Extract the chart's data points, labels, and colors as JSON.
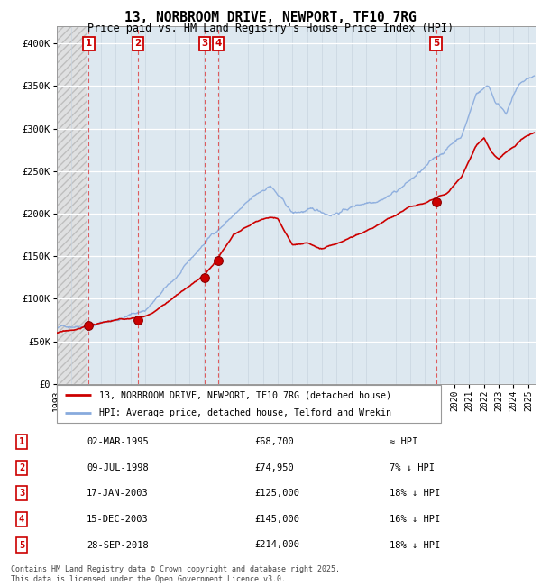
{
  "title1": "13, NORBROOM DRIVE, NEWPORT, TF10 7RG",
  "title2": "Price paid vs. HM Land Registry's House Price Index (HPI)",
  "yticks": [
    0,
    50000,
    100000,
    150000,
    200000,
    250000,
    300000,
    350000,
    400000
  ],
  "ytick_labels": [
    "£0",
    "£50K",
    "£100K",
    "£150K",
    "£200K",
    "£250K",
    "£300K",
    "£350K",
    "£400K"
  ],
  "xlim_start": 1993.0,
  "xlim_end": 2025.5,
  "ylim_min": 0,
  "ylim_max": 420000,
  "hatch_end": 1995.0,
  "sales": [
    {
      "num": 1,
      "year": 1995.17,
      "price": 68700
    },
    {
      "num": 2,
      "year": 1998.52,
      "price": 74950
    },
    {
      "num": 3,
      "year": 2003.05,
      "price": 125000
    },
    {
      "num": 4,
      "year": 2003.96,
      "price": 145000
    },
    {
      "num": 5,
      "year": 2018.74,
      "price": 214000
    }
  ],
  "legend_line1": "13, NORBROOM DRIVE, NEWPORT, TF10 7RG (detached house)",
  "legend_line2": "HPI: Average price, detached house, Telford and Wrekin",
  "table": [
    {
      "num": 1,
      "date": "02-MAR-1995",
      "price": "£68,700",
      "hpi": "≈ HPI"
    },
    {
      "num": 2,
      "date": "09-JUL-1998",
      "price": "£74,950",
      "hpi": "7% ↓ HPI"
    },
    {
      "num": 3,
      "date": "17-JAN-2003",
      "price": "£125,000",
      "hpi": "18% ↓ HPI"
    },
    {
      "num": 4,
      "date": "15-DEC-2003",
      "price": "£145,000",
      "hpi": "16% ↓ HPI"
    },
    {
      "num": 5,
      "date": "28-SEP-2018",
      "price": "£214,000",
      "hpi": "18% ↓ HPI"
    }
  ],
  "footer": "Contains HM Land Registry data © Crown copyright and database right 2025.\nThis data is licensed under the Open Government Licence v3.0.",
  "sale_color": "#cc0000",
  "hpi_color": "#88aadd",
  "bg_color": "#dde8f0",
  "hatch_bg": "#e8e8e8"
}
